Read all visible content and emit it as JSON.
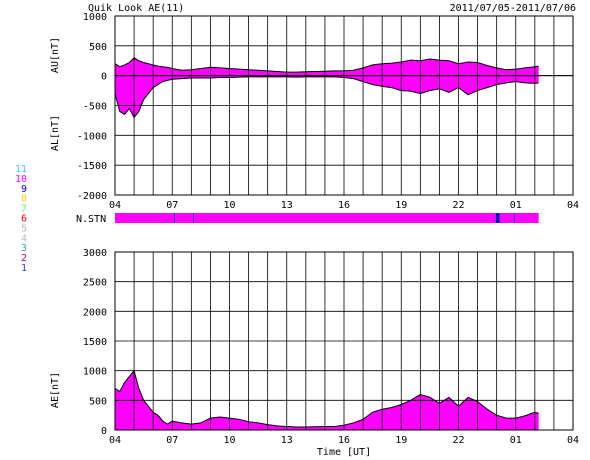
{
  "header": {
    "title": "Quik Look AE(11)",
    "date_range": "2011/07/05-2011/07/06"
  },
  "station_legend": [
    {
      "label": "11",
      "color": "#33ccff"
    },
    {
      "label": "10",
      "color": "#ff00ff"
    },
    {
      "label": "9",
      "color": "#0000cc"
    },
    {
      "label": "8",
      "color": "#ffcc00"
    },
    {
      "label": "7",
      "color": "#66ee66"
    },
    {
      "label": "6",
      "color": "#ff0000"
    },
    {
      "label": "5",
      "color": "#bbbbbb"
    },
    {
      "label": "4",
      "color": "#bbbbbb"
    },
    {
      "label": "3",
      "color": "#33aaaa"
    },
    {
      "label": "2",
      "color": "#cc0066"
    },
    {
      "label": "1",
      "color": "#3333ff"
    }
  ],
  "colors": {
    "fill": "#ff00ff",
    "line": "#000000",
    "grid": "#000000",
    "dropout": "#0000cc"
  },
  "chart_data": [
    {
      "type": "area",
      "panel": "AU/AL",
      "ylabel_upper": "AU[nT]",
      "ylabel_lower": "AL[nT]",
      "ylim": [
        -2000,
        1000
      ],
      "yticks": [
        1000,
        500,
        0,
        -500,
        -1000,
        -1500,
        -2000
      ],
      "xticks": [
        "04",
        "07",
        "10",
        "13",
        "16",
        "19",
        "22",
        "01",
        "04"
      ],
      "xlim_hours": [
        4,
        28
      ],
      "grid": true,
      "x": [
        4,
        4.25,
        4.5,
        4.75,
        5,
        5.25,
        5.5,
        5.75,
        6,
        6.25,
        6.5,
        6.75,
        7,
        7.5,
        8,
        8.5,
        9,
        9.5,
        10,
        10.5,
        11,
        11.5,
        12,
        12.5,
        13,
        13.5,
        14,
        14.5,
        15,
        15.5,
        16,
        16.5,
        17,
        17.5,
        18,
        18.5,
        19,
        19.5,
        20,
        20.5,
        21,
        21.5,
        22,
        22.5,
        23,
        23.5,
        24,
        24.5,
        25,
        25.5,
        26,
        26.2
      ],
      "AU": [
        200,
        150,
        180,
        220,
        300,
        250,
        220,
        200,
        180,
        160,
        150,
        140,
        120,
        90,
        100,
        120,
        140,
        130,
        120,
        110,
        100,
        90,
        80,
        70,
        60,
        60,
        65,
        70,
        75,
        80,
        80,
        90,
        130,
        180,
        200,
        210,
        230,
        260,
        250,
        280,
        260,
        250,
        200,
        230,
        220,
        170,
        130,
        100,
        110,
        130,
        150,
        160
      ],
      "AL": [
        -300,
        -600,
        -650,
        -550,
        -700,
        -600,
        -400,
        -300,
        -200,
        -150,
        -100,
        -80,
        -60,
        -50,
        -40,
        -40,
        -40,
        -30,
        -30,
        -25,
        -20,
        -20,
        -20,
        -20,
        -20,
        -25,
        -20,
        -20,
        -20,
        -20,
        -30,
        -50,
        -100,
        -150,
        -180,
        -200,
        -250,
        -260,
        -300,
        -250,
        -220,
        -280,
        -200,
        -320,
        -250,
        -200,
        -150,
        -120,
        -100,
        -120,
        -130,
        -120
      ]
    },
    {
      "type": "bar",
      "panel": "N.STN",
      "label": "N.STN",
      "xticks": [
        "04",
        "07",
        "10",
        "13",
        "16",
        "19",
        "22",
        "01",
        "04"
      ],
      "xlim_hours": [
        4,
        28
      ],
      "segments": [
        {
          "start": 4,
          "end": 7.1,
          "stations": 10
        },
        {
          "start": 7.1,
          "end": 7.15,
          "stations": 9
        },
        {
          "start": 7.15,
          "end": 8.1,
          "stations": 10
        },
        {
          "start": 8.1,
          "end": 8.15,
          "stations": 9
        },
        {
          "start": 8.15,
          "end": 23.95,
          "stations": 10
        },
        {
          "start": 23.95,
          "end": 24.15,
          "stations": 9
        },
        {
          "start": 24.15,
          "end": 24.9,
          "stations": 10
        },
        {
          "start": 24.9,
          "end": 24.95,
          "stations": 9
        },
        {
          "start": 24.95,
          "end": 26.2,
          "stations": 10
        }
      ]
    },
    {
      "type": "area",
      "panel": "AE",
      "ylabel": "AE[nT]",
      "xlabel": "Time [UT]",
      "ylim": [
        0,
        3000
      ],
      "yticks": [
        3000,
        2500,
        2000,
        1500,
        1000,
        500,
        0
      ],
      "xticks": [
        "04",
        "07",
        "10",
        "13",
        "16",
        "19",
        "22",
        "01",
        "04"
      ],
      "xlim_hours": [
        4,
        28
      ],
      "grid": true,
      "x": [
        4,
        4.25,
        4.5,
        4.75,
        5,
        5.25,
        5.5,
        5.75,
        6,
        6.25,
        6.5,
        6.75,
        7,
        7.5,
        8,
        8.5,
        9,
        9.5,
        10,
        10.5,
        11,
        11.5,
        12,
        12.5,
        13,
        13.5,
        14,
        14.5,
        15,
        15.5,
        16,
        16.5,
        17,
        17.5,
        18,
        18.5,
        19,
        19.5,
        20,
        20.5,
        21,
        21.5,
        22,
        22.5,
        23,
        23.5,
        24,
        24.5,
        25,
        25.5,
        26,
        26.2
      ],
      "values": [
        700,
        650,
        800,
        900,
        1000,
        700,
        500,
        400,
        300,
        250,
        150,
        100,
        150,
        120,
        100,
        120,
        200,
        220,
        200,
        180,
        140,
        120,
        90,
        70,
        60,
        50,
        50,
        55,
        60,
        60,
        80,
        120,
        180,
        300,
        350,
        380,
        430,
        500,
        600,
        550,
        450,
        550,
        400,
        550,
        480,
        350,
        250,
        200,
        200,
        240,
        300,
        280
      ]
    }
  ]
}
